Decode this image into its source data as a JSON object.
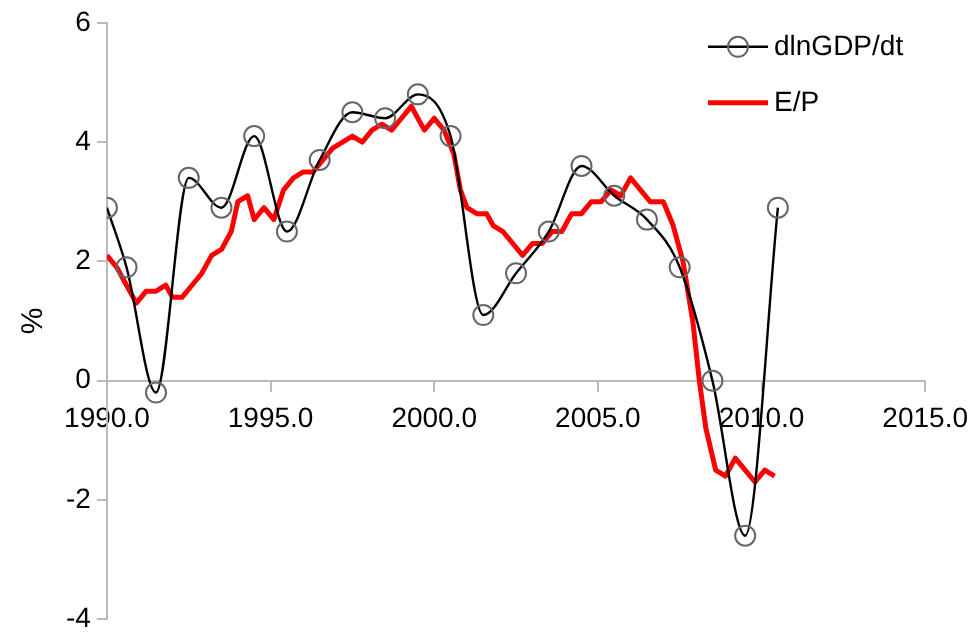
{
  "chart_data": {
    "type": "line",
    "ylabel": "%",
    "xlim": [
      1990,
      2015
    ],
    "xticks": [
      {
        "value": 1990,
        "label": "1990.0"
      },
      {
        "value": 1995,
        "label": "1995.0"
      },
      {
        "value": 2000,
        "label": "2000.0"
      },
      {
        "value": 2005,
        "label": "2005.0"
      },
      {
        "value": 2010,
        "label": "2010.0"
      },
      {
        "value": 2015,
        "label": "2015.0"
      }
    ],
    "ylim": [
      -4,
      6
    ],
    "yticks": [
      -4,
      -2,
      0,
      2,
      4,
      6
    ],
    "grid": false,
    "legend": "top right",
    "series": [
      {
        "name": "dlnGDP/dt",
        "color": "#000000",
        "marker": "circle",
        "x": [
          1990.0,
          1990.6,
          1991.5,
          1992.5,
          1993.5,
          1994.5,
          1995.5,
          1996.5,
          1997.5,
          1998.5,
          1999.5,
          2000.5,
          2001.5,
          2002.5,
          2003.5,
          2004.5,
          2005.5,
          2006.5,
          2007.5,
          2008.5,
          2009.5,
          2010.5
        ],
        "values": [
          2.9,
          1.9,
          -0.2,
          3.4,
          2.9,
          4.1,
          2.5,
          3.7,
          4.5,
          4.4,
          4.8,
          4.1,
          1.1,
          1.8,
          2.5,
          3.6,
          3.1,
          2.7,
          1.9,
          0.0,
          -2.6,
          2.9
        ]
      },
      {
        "name": "E/P",
        "color": "#ff0000",
        "marker": "none",
        "x": [
          1990.0,
          1990.3,
          1990.6,
          1990.9,
          1991.2,
          1991.5,
          1991.8,
          1992.0,
          1992.3,
          1992.6,
          1992.9,
          1993.2,
          1993.5,
          1993.8,
          1994.0,
          1994.3,
          1994.5,
          1994.8,
          1995.1,
          1995.4,
          1995.7,
          1996.0,
          1996.3,
          1996.6,
          1996.9,
          1997.2,
          1997.5,
          1997.8,
          1998.1,
          1998.4,
          1998.7,
          1999.0,
          1999.3,
          1999.5,
          1999.7,
          2000.0,
          2000.3,
          2000.6,
          2000.8,
          2001.0,
          2001.3,
          2001.6,
          2001.8,
          2002.1,
          2002.4,
          2002.7,
          2003.0,
          2003.3,
          2003.6,
          2003.9,
          2004.2,
          2004.5,
          2004.8,
          2005.1,
          2005.4,
          2005.7,
          2006.0,
          2006.3,
          2006.6,
          2007.0,
          2007.3,
          2007.6,
          2007.9,
          2008.1,
          2008.3,
          2008.6,
          2008.9,
          2009.2,
          2009.5,
          2009.8,
          2010.1,
          2010.4
        ],
        "values": [
          2.1,
          1.9,
          1.6,
          1.3,
          1.5,
          1.5,
          1.6,
          1.4,
          1.4,
          1.6,
          1.8,
          2.1,
          2.2,
          2.5,
          3.0,
          3.1,
          2.7,
          2.9,
          2.7,
          3.2,
          3.4,
          3.5,
          3.5,
          3.7,
          3.9,
          4.0,
          4.1,
          4.0,
          4.2,
          4.3,
          4.2,
          4.4,
          4.6,
          4.4,
          4.2,
          4.4,
          4.2,
          3.8,
          3.2,
          2.9,
          2.8,
          2.8,
          2.6,
          2.5,
          2.3,
          2.1,
          2.3,
          2.3,
          2.5,
          2.5,
          2.8,
          2.8,
          3.0,
          3.0,
          3.2,
          3.1,
          3.4,
          3.2,
          3.0,
          3.0,
          2.6,
          2.0,
          1.0,
          0.0,
          -0.8,
          -1.5,
          -1.6,
          -1.3,
          -1.5,
          -1.7,
          -1.5,
          -1.6
        ]
      }
    ]
  }
}
